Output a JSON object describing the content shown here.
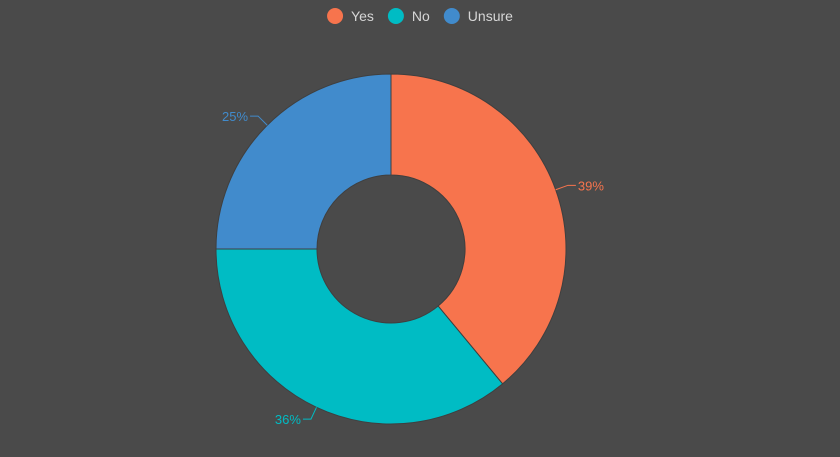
{
  "chart_data": {
    "type": "pie",
    "variant": "donut",
    "categories": [
      "Yes",
      "No",
      "Unsure"
    ],
    "values": [
      39,
      36,
      25
    ],
    "labels": [
      "39%",
      "36%",
      "25%"
    ],
    "colors": [
      "#f7744d",
      "#00bcc4",
      "#418bcc"
    ],
    "legend": {
      "placement": "top-center",
      "items": [
        {
          "label": "Yes",
          "color": "#f7744d"
        },
        {
          "label": "No",
          "color": "#00bcc4"
        },
        {
          "label": "Unsure",
          "color": "#418bcc"
        }
      ]
    },
    "title": "",
    "start_angle": "12-o'clock",
    "direction": "clockwise"
  },
  "theme": {
    "background": "#4a4a4a",
    "legend_text_color": "#d6d6d6",
    "slice_border": "#3f3f3f"
  }
}
